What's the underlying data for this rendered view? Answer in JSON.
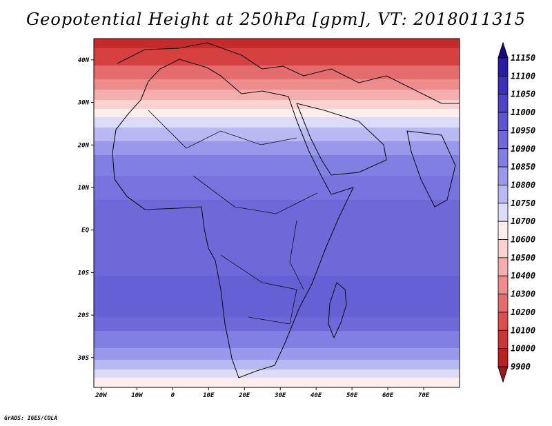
{
  "title": "Geopotential Height at 250hPa [gpm], VT: 2018011315",
  "credit": "GrADS: IGES/COLA",
  "map": {
    "lon_range": [
      -22,
      80
    ],
    "lat_range": [
      -37,
      45
    ],
    "lon_ticks": [
      {
        "value": -20,
        "label": "20W"
      },
      {
        "value": -10,
        "label": "10W"
      },
      {
        "value": 0,
        "label": "0"
      },
      {
        "value": 10,
        "label": "10E"
      },
      {
        "value": 20,
        "label": "20E"
      },
      {
        "value": 30,
        "label": "30E"
      },
      {
        "value": 40,
        "label": "40E"
      },
      {
        "value": 50,
        "label": "50E"
      },
      {
        "value": 60,
        "label": "60E"
      },
      {
        "value": 70,
        "label": "70E"
      }
    ],
    "lat_ticks": [
      {
        "value": 40,
        "label": "40N"
      },
      {
        "value": 30,
        "label": "30N"
      },
      {
        "value": 20,
        "label": "20N"
      },
      {
        "value": 10,
        "label": "10N"
      },
      {
        "value": 0,
        "label": "EQ"
      },
      {
        "value": -10,
        "label": "10S"
      },
      {
        "value": -20,
        "label": "20S"
      },
      {
        "value": -30,
        "label": "30S"
      }
    ]
  },
  "colorbar": {
    "labels": [
      "11150",
      "11100",
      "11050",
      "11000",
      "10950",
      "10900",
      "10850",
      "10800",
      "10750",
      "10700",
      "10600",
      "10500",
      "10400",
      "10300",
      "10200",
      "10100",
      "10000",
      "9900"
    ],
    "colors": [
      "#1a0a80",
      "#2a1ea6",
      "#3a30bb",
      "#4b42c6",
      "#5c55d0",
      "#6e68d9",
      "#8180e2",
      "#9a98ea",
      "#b8b8f2",
      "#dcdcf8",
      "#fdeeee",
      "#fbd2d2",
      "#f4aeae",
      "#ec8c8c",
      "#e46c6c",
      "#da4e4e",
      "#cc3535",
      "#b82222",
      "#a01818"
    ]
  },
  "field": {
    "top_color": "#c62a2a"
  }
}
